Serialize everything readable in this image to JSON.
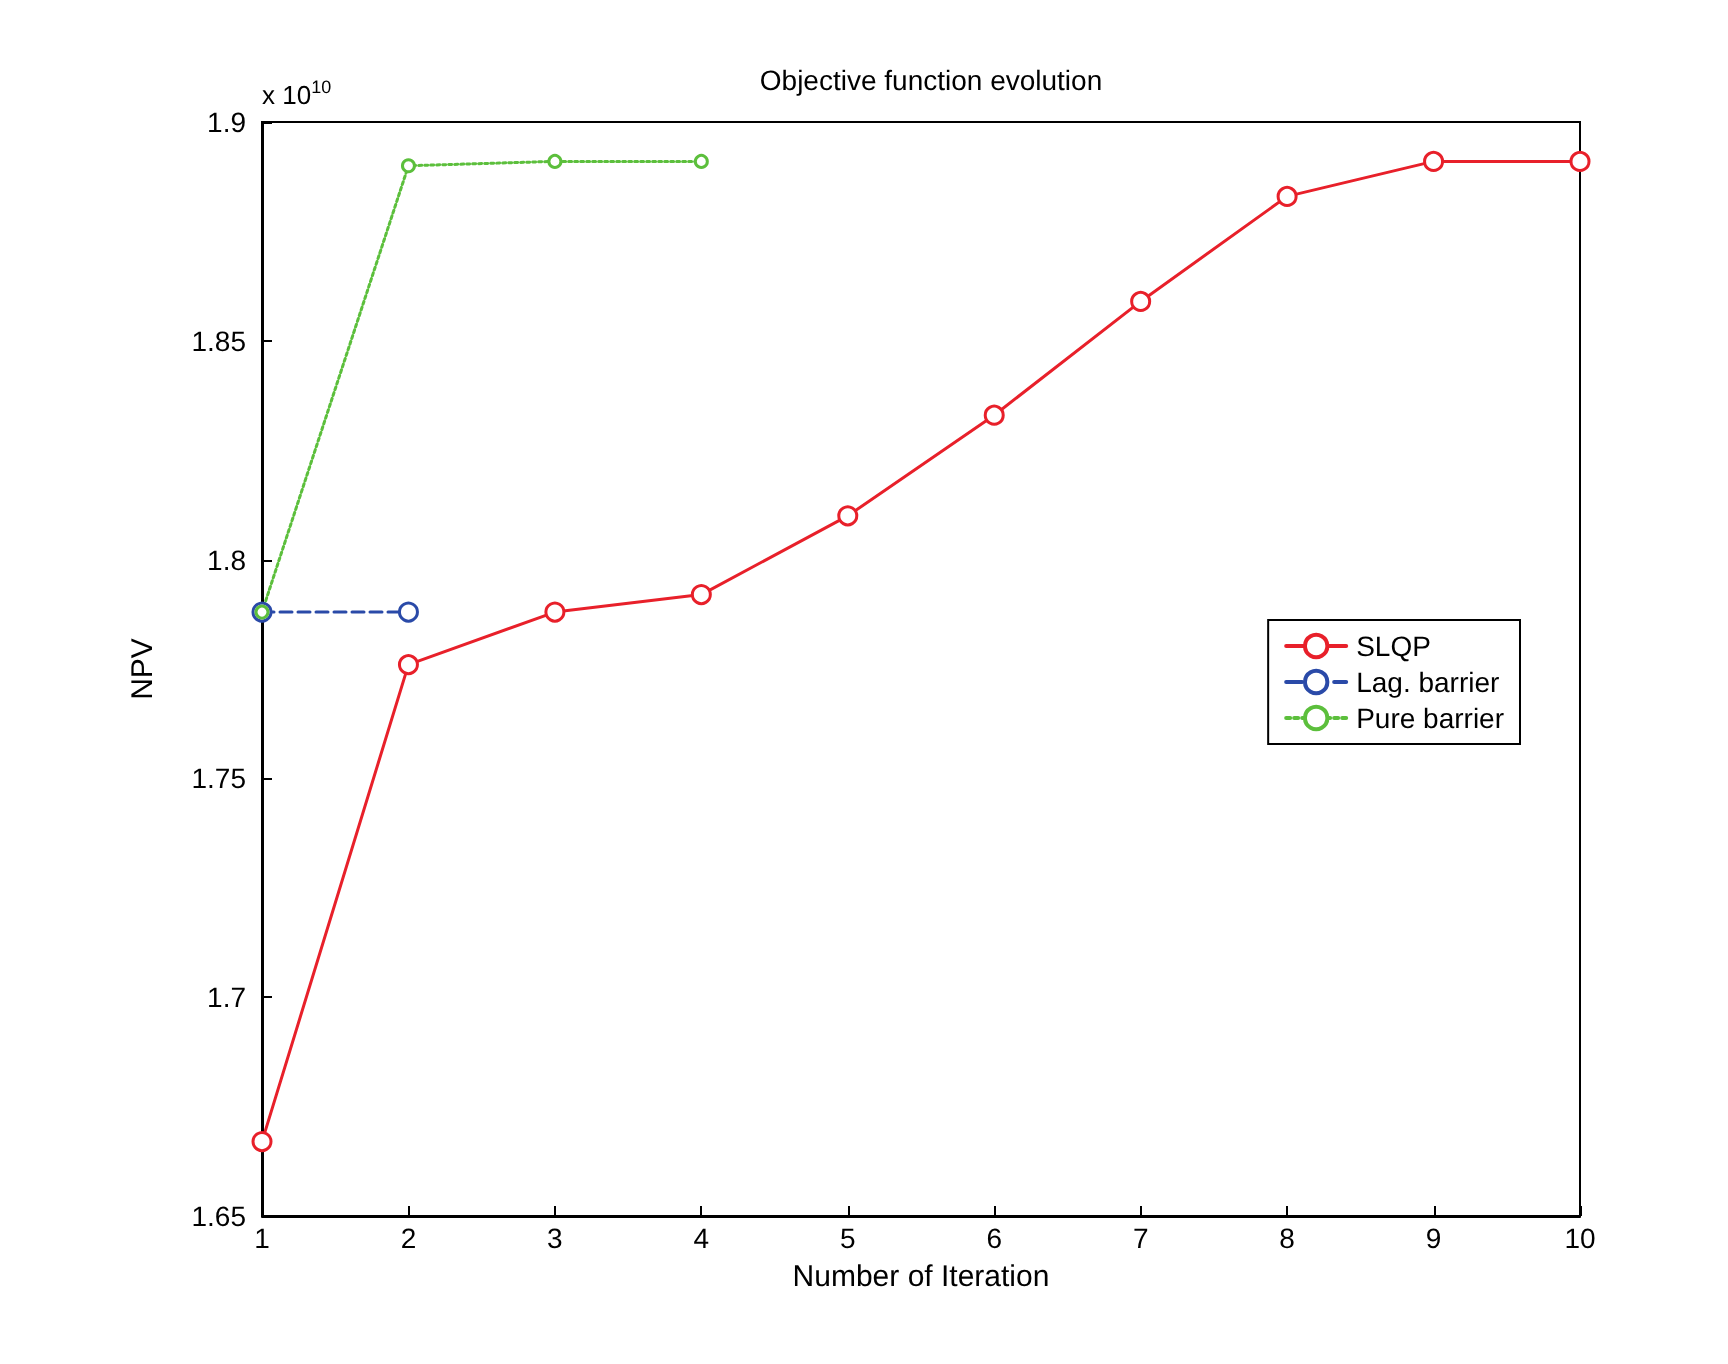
{
  "chart_data": {
    "type": "line",
    "title": "Objective function evolution",
    "xlabel": "Number of Iteration",
    "ylabel": "NPV",
    "annotations": [
      "x 10$^{10}$"
    ],
    "x": [
      1,
      2,
      3,
      4,
      5,
      6,
      7,
      8,
      9,
      10
    ],
    "series": [
      {
        "name": "SLQP",
        "color": "#e8202a",
        "line_style": "solid",
        "values": [
          1.667,
          1.776,
          1.788,
          1.792,
          1.81,
          1.833,
          1.859,
          1.883,
          1.891,
          1.891
        ]
      },
      {
        "name": "Lag. barrier",
        "color": "#2a4aa8",
        "line_style": "dashed",
        "x": [
          1,
          2
        ],
        "values": [
          1.788,
          1.788
        ]
      },
      {
        "name": "Pure barrier",
        "color": "#5cbf3c",
        "line_style": "dotted",
        "x": [
          1,
          2,
          3,
          4
        ],
        "values": [
          1.788,
          1.89,
          1.891,
          1.891
        ]
      }
    ],
    "xlim": [
      1,
      10
    ],
    "xticks": [
      1,
      2,
      3,
      4,
      5,
      6,
      7,
      8,
      9,
      10
    ],
    "ylim": [
      1.65,
      1.9
    ],
    "yticks": [
      1.65,
      1.7,
      1.75,
      1.8,
      1.85,
      1.9
    ],
    "grid": false,
    "legend": "right",
    "marker": "circle"
  }
}
